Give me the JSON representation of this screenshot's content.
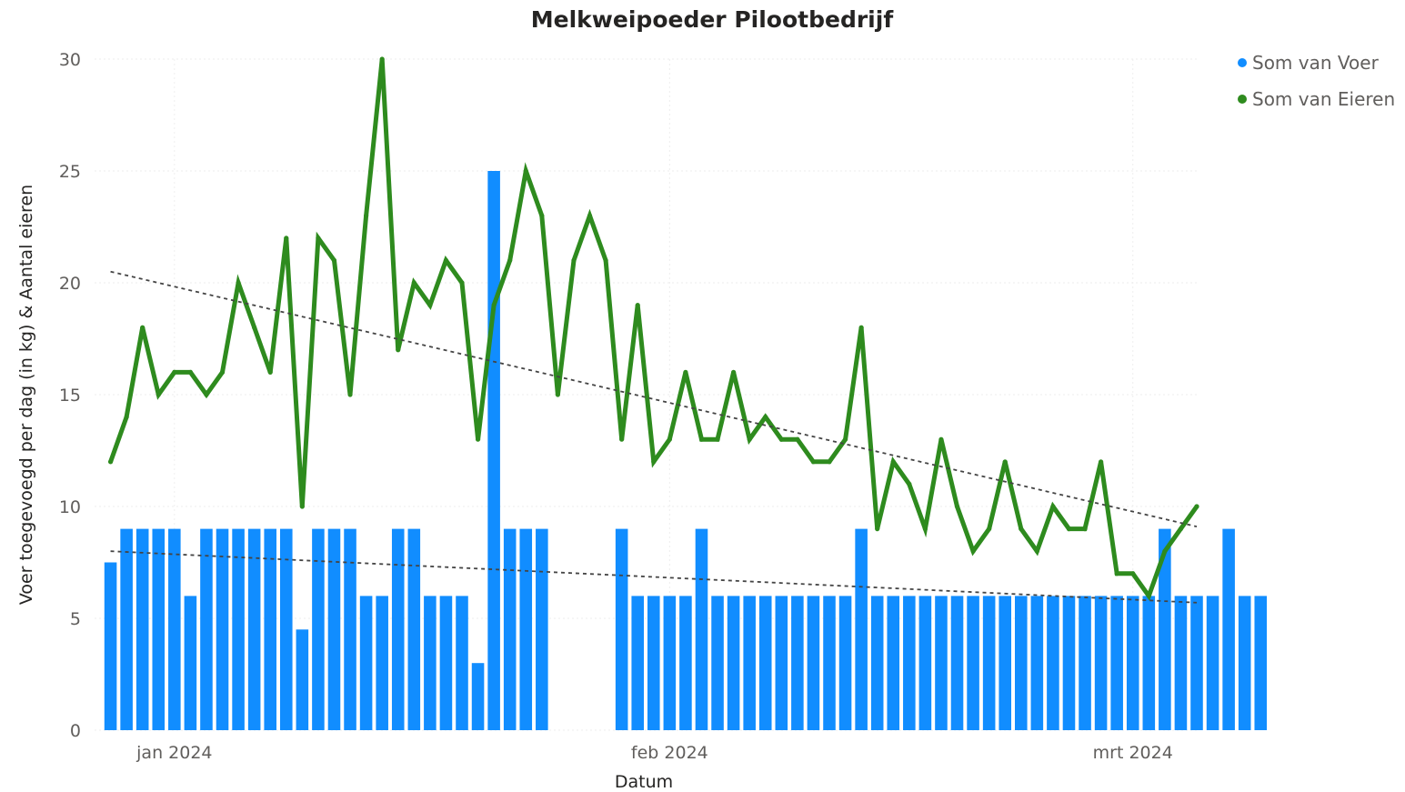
{
  "chart_data": {
    "type": "bar",
    "title": "Melkweipoeder Pilootbedrijf",
    "xlabel": "Datum",
    "ylabel": "Voer toegevoegd per dag (in kg) & Aantal eieren",
    "ylim": [
      0,
      30
    ],
    "yticks": [
      0,
      5,
      10,
      15,
      20,
      25,
      30
    ],
    "xlim": [
      "2023-12-27",
      "2024-03-05"
    ],
    "xticks": [
      {
        "date": "2024-01-01",
        "label": "jan 2024"
      },
      {
        "date": "2024-02-01",
        "label": "feb 2024"
      },
      {
        "date": "2024-03-01",
        "label": "mrt 2024"
      }
    ],
    "grid": true,
    "legend_position": "top-right",
    "colors": {
      "voer": "#118DFF",
      "eieren": "#2E8B1E",
      "trend": "#444444"
    },
    "series": [
      {
        "name": "Som van Voer",
        "type": "bar",
        "x": [
          "2023-12-28",
          "2023-12-29",
          "2023-12-30",
          "2023-12-31",
          "2024-01-01",
          "2024-01-02",
          "2024-01-03",
          "2024-01-04",
          "2024-01-05",
          "2024-01-06",
          "2024-01-07",
          "2024-01-08",
          "2024-01-09",
          "2024-01-10",
          "2024-01-11",
          "2024-01-12",
          "2024-01-13",
          "2024-01-14",
          "2024-01-15",
          "2024-01-16",
          "2024-01-17",
          "2024-01-18",
          "2024-01-19",
          "2024-01-20",
          "2024-01-21",
          "2024-01-22",
          "2024-01-23",
          "2024-01-24",
          "2024-01-29",
          "2024-01-30",
          "2024-01-31",
          "2024-02-01",
          "2024-02-02",
          "2024-02-03",
          "2024-02-04",
          "2024-02-05",
          "2024-02-06",
          "2024-02-07",
          "2024-02-08",
          "2024-02-09",
          "2024-02-10",
          "2024-02-11",
          "2024-02-12",
          "2024-02-13",
          "2024-02-14",
          "2024-02-15",
          "2024-02-16",
          "2024-02-17",
          "2024-02-18",
          "2024-02-19",
          "2024-02-20",
          "2024-02-21",
          "2024-02-22",
          "2024-02-23",
          "2024-02-24",
          "2024-02-25",
          "2024-02-26",
          "2024-02-27",
          "2024-02-28",
          "2024-02-29",
          "2024-03-01",
          "2024-03-02",
          "2024-03-03",
          "2024-03-04",
          "2024-03-05",
          "2024-03-06",
          "2024-03-07",
          "2024-03-08",
          "2024-03-09"
        ],
        "values": [
          7.5,
          9,
          9,
          9,
          9,
          6,
          9,
          9,
          9,
          9,
          9,
          9,
          4.5,
          9,
          9,
          9,
          6,
          6,
          9,
          9,
          6,
          6,
          6,
          3,
          25,
          9,
          9,
          9,
          9,
          6,
          6,
          6,
          6,
          9,
          6,
          6,
          6,
          6,
          6,
          6,
          6,
          6,
          6,
          9,
          6,
          6,
          6,
          6,
          6,
          6,
          6,
          6,
          6,
          6,
          6,
          6,
          6,
          6,
          6,
          6,
          6,
          6,
          9,
          6,
          6,
          6,
          9,
          6,
          6
        ]
      },
      {
        "name": "Som van Eieren",
        "type": "line",
        "x": [
          "2023-12-28",
          "2023-12-29",
          "2023-12-30",
          "2023-12-31",
          "2024-01-01",
          "2024-01-02",
          "2024-01-03",
          "2024-01-04",
          "2024-01-05",
          "2024-01-06",
          "2024-01-07",
          "2024-01-08",
          "2024-01-09",
          "2024-01-10",
          "2024-01-11",
          "2024-01-12",
          "2024-01-13",
          "2024-01-14",
          "2024-01-15",
          "2024-01-16",
          "2024-01-17",
          "2024-01-18",
          "2024-01-19",
          "2024-01-20",
          "2024-01-21",
          "2024-01-22",
          "2024-01-23",
          "2024-01-24",
          "2024-01-25",
          "2024-01-26",
          "2024-01-27",
          "2024-01-28",
          "2024-01-29",
          "2024-01-30",
          "2024-01-31",
          "2024-02-01",
          "2024-02-02",
          "2024-02-03",
          "2024-02-04",
          "2024-02-05",
          "2024-02-06",
          "2024-02-07",
          "2024-02-08",
          "2024-02-09",
          "2024-02-10",
          "2024-02-11",
          "2024-02-12",
          "2024-02-13",
          "2024-02-14",
          "2024-02-15",
          "2024-02-16",
          "2024-02-17",
          "2024-02-18",
          "2024-02-19",
          "2024-02-20",
          "2024-02-21",
          "2024-02-22",
          "2024-02-23",
          "2024-02-24",
          "2024-02-25",
          "2024-02-26",
          "2024-02-27",
          "2024-02-28",
          "2024-02-29",
          "2024-03-01",
          "2024-03-02",
          "2024-03-03",
          "2024-03-04",
          "2024-03-05"
        ],
        "values": [
          12,
          14,
          18,
          15,
          16,
          16,
          15,
          16,
          20,
          18,
          16,
          22,
          10,
          22,
          21,
          15,
          23,
          30,
          17,
          20,
          19,
          21,
          20,
          13,
          19,
          21,
          25,
          23,
          15,
          21,
          23,
          21,
          13,
          19,
          12,
          13,
          16,
          13,
          13,
          16,
          13,
          14,
          13,
          13,
          12,
          12,
          13,
          18,
          9,
          12,
          11,
          9,
          13,
          10,
          8,
          9,
          12,
          9,
          8,
          10,
          9,
          9,
          12,
          7,
          7,
          6,
          8,
          9,
          10
        ]
      },
      {
        "name": "",
        "type": "trendline",
        "of": "Som van Voer",
        "x": [
          "2023-12-28",
          "2024-03-05"
        ],
        "values": [
          8.0,
          5.7
        ]
      },
      {
        "name": "",
        "type": "trendline",
        "of": "Som van Eieren",
        "x": [
          "2023-12-28",
          "2024-03-05"
        ],
        "values": [
          20.5,
          9.1
        ]
      }
    ]
  }
}
